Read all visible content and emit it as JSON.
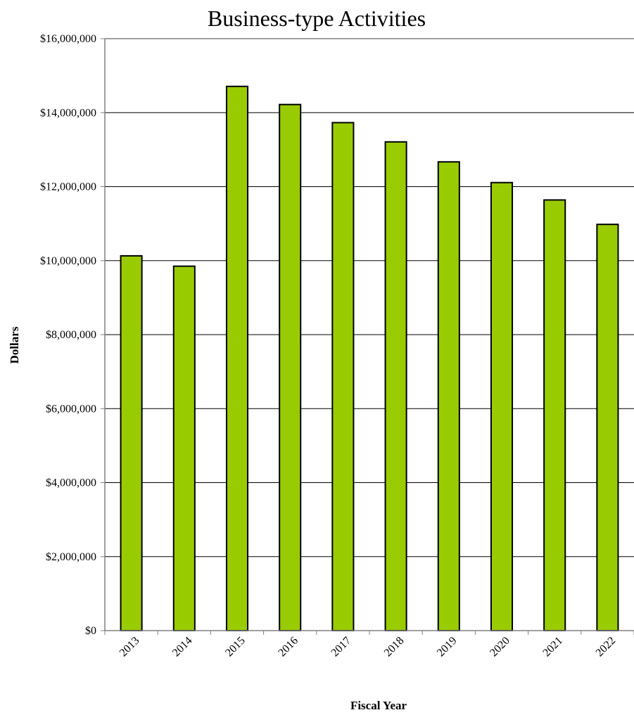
{
  "chart_data": {
    "type": "bar",
    "title": "Business-type Activities",
    "xlabel": "Fiscal Year",
    "ylabel": "Dollars",
    "categories": [
      "2013",
      "2014",
      "2015",
      "2016",
      "2017",
      "2018",
      "2019",
      "2020",
      "2021",
      "2022"
    ],
    "values": [
      10130000,
      9850000,
      14710000,
      14220000,
      13730000,
      13210000,
      12670000,
      12110000,
      11640000,
      10980000
    ],
    "ylim": [
      0,
      16000000
    ],
    "yticks": [
      0,
      2000000,
      4000000,
      6000000,
      8000000,
      10000000,
      12000000,
      14000000,
      16000000
    ],
    "ytick_labels": [
      "$0",
      "$2,000,000",
      "$4,000,000",
      "$6,000,000",
      "$8,000,000",
      "$10,000,000",
      "$12,000,000",
      "$14,000,000",
      "$16,000,000"
    ],
    "grid": "horizontal",
    "legend": "none",
    "colors": {
      "bar_fill": "#99cc00",
      "bar_stroke": "#000000",
      "grid": "#000000",
      "axis": "#808080"
    }
  }
}
